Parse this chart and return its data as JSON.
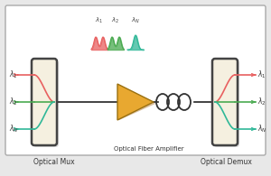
{
  "bg_outer": "#e8e8e8",
  "bg_inner": "#ffffff",
  "box_face": "#f5f0e0",
  "box_edge": "#444444",
  "amp_color": "#e8a830",
  "amp_shadow": "#b07820",
  "coil_color": "#333333",
  "line_color": "#222222",
  "colors": {
    "red": "#e86060",
    "green": "#4aaa50",
    "teal": "#30b898"
  },
  "mux_label": "Optical Mux",
  "demux_label": "Optical Demux",
  "amp_label": "Optical Fiber Amplifier",
  "figw": 3.0,
  "figh": 1.95,
  "dpi": 100
}
